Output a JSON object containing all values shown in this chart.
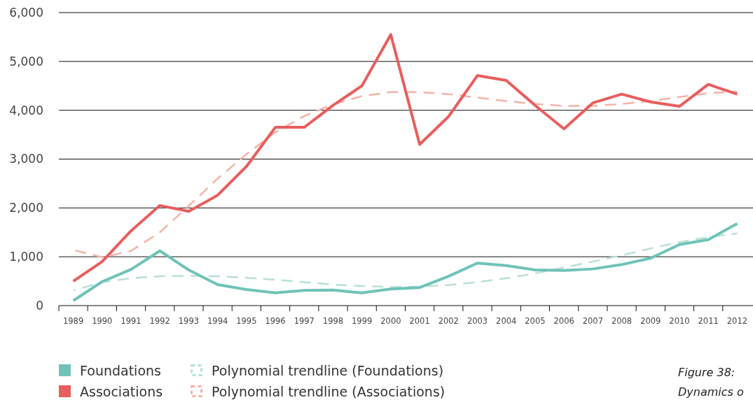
{
  "chart_data": {
    "type": "line",
    "categories": [
      "1989",
      "1990",
      "1991",
      "1992",
      "1993",
      "1994",
      "1995",
      "1996",
      "1997",
      "1998",
      "1999",
      "2000",
      "2001",
      "2002",
      "2003",
      "2004",
      "2005",
      "2006",
      "2007",
      "2008",
      "2009",
      "2010",
      "2011",
      "2012"
    ],
    "series": [
      {
        "name": "Foundations",
        "color": "#6fc3b8",
        "values": [
          100,
          490,
          740,
          1120,
          730,
          430,
          330,
          260,
          310,
          320,
          260,
          340,
          370,
          600,
          870,
          820,
          730,
          720,
          750,
          840,
          970,
          1250,
          1350,
          1680
        ]
      },
      {
        "name": "Associations",
        "color": "#e95e5e",
        "values": [
          500,
          900,
          1530,
          2050,
          1930,
          2260,
          2850,
          3650,
          3650,
          4100,
          4500,
          5550,
          3300,
          3870,
          4710,
          4610,
          4100,
          3620,
          4150,
          4330,
          4170,
          4080,
          4530,
          4330
        ]
      },
      {
        "name": "Polynomial trendline (Foundations)",
        "color": "#b9e0d8",
        "line_style": "dashed",
        "values": [
          310,
          480,
          560,
          600,
          610,
          600,
          570,
          530,
          480,
          430,
          400,
          380,
          390,
          420,
          480,
          560,
          660,
          780,
          900,
          1030,
          1170,
          1300,
          1400,
          1480
        ]
      },
      {
        "name": "Polynomial trendline (Associations)",
        "color": "#f4b3a8",
        "line_style": "dashed",
        "values": [
          1140,
          990,
          1120,
          1500,
          2040,
          2600,
          3100,
          3550,
          3880,
          4120,
          4290,
          4370,
          4370,
          4330,
          4260,
          4190,
          4130,
          4090,
          4090,
          4130,
          4190,
          4270,
          4350,
          4380
        ]
      }
    ],
    "ylim": [
      0,
      6000
    ],
    "yticks": [
      {
        "value": 0,
        "label": "0"
      },
      {
        "value": 1000,
        "label": "1,000"
      },
      {
        "value": 2000,
        "label": "2,000"
      },
      {
        "value": 3000,
        "label": "3,000"
      },
      {
        "value": 4000,
        "label": "4,000"
      },
      {
        "value": 5000,
        "label": "5,000"
      },
      {
        "value": 6000,
        "label": "6,000"
      }
    ],
    "grid": "y",
    "legend": "bottom",
    "marker": "none",
    "annotations": [
      "Figure 38:",
      "Dynamics o"
    ]
  }
}
